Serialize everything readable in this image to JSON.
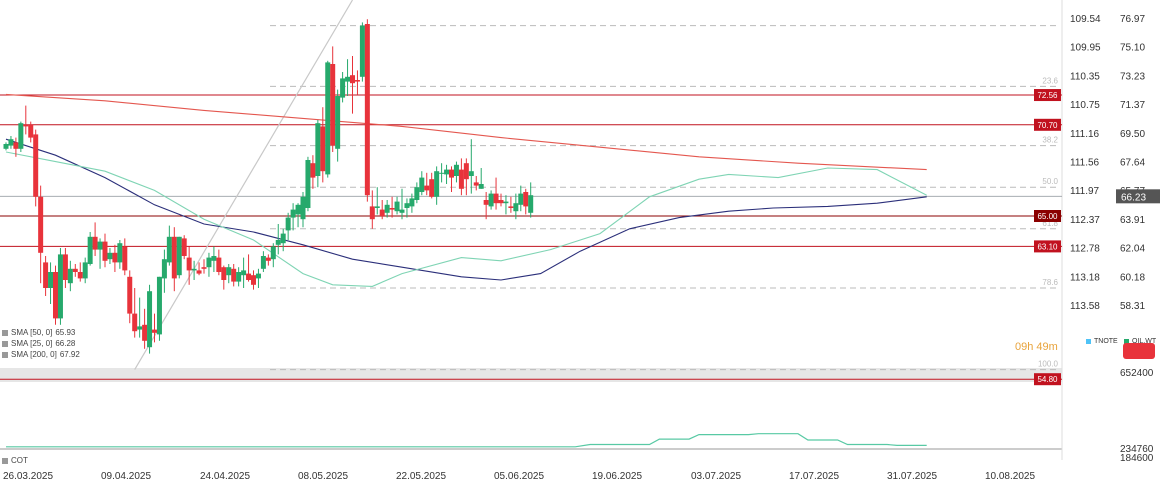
{
  "chart_data": {
    "type": "candlestick",
    "instrument_tags": [
      "TNOTE",
      "OIL.WT"
    ],
    "x_ticks": [
      "26.03.2025",
      "09.04.2025",
      "24.04.2025",
      "08.05.2025",
      "22.05.2025",
      "05.06.2025",
      "19.06.2025",
      "03.07.2025",
      "17.07.2025",
      "31.07.2025",
      "10.08.2025"
    ],
    "y_left_ticks": [
      "109.54",
      "109.95",
      "110.35",
      "110.75",
      "111.16",
      "111.56",
      "111.97",
      "112.37",
      "112.78",
      "113.18",
      "113.58"
    ],
    "y_right_ticks": [
      "76.97",
      "75.10",
      "73.23",
      "71.37",
      "69.50",
      "67.64",
      "65.77",
      "63.91",
      "62.04",
      "60.18",
      "58.31"
    ],
    "ylim": [
      55.5,
      78.5
    ],
    "current_price": "66.23",
    "countdown": "09h 49m",
    "levels": [
      {
        "value": 72.56,
        "label": "72.56",
        "color": "#c1121f"
      },
      {
        "value": 70.7,
        "label": "70.70",
        "color": "#c1121f"
      },
      {
        "value": 65.0,
        "label": "65.00",
        "color": "#8b0000"
      },
      {
        "value": 63.1,
        "label": "63.10",
        "color": "#c1121f"
      },
      {
        "value": 54.8,
        "label": "54.80",
        "color": "#c1121f"
      }
    ],
    "fib_levels": [
      {
        "value": 76.9,
        "label": ""
      },
      {
        "value": 73.1,
        "label": "23.6"
      },
      {
        "value": 69.4,
        "label": "38.2"
      },
      {
        "value": 66.8,
        "label": "50.0"
      },
      {
        "value": 64.2,
        "label": "61.8"
      },
      {
        "value": 60.5,
        "label": "78.6"
      },
      {
        "value": 55.4,
        "label": "100.0"
      }
    ],
    "trendline": {
      "from": [
        26,
        55.4
      ],
      "to": [
        70,
        78.5
      ]
    },
    "candles": [
      [
        69.2,
        69.6,
        69.1,
        69.5
      ],
      [
        69.4,
        70.0,
        69.2,
        69.8
      ],
      [
        69.6,
        69.9,
        68.7,
        69.2
      ],
      [
        69.2,
        70.9,
        69.0,
        70.8
      ],
      [
        70.7,
        71.9,
        70.1,
        70.6
      ],
      [
        70.7,
        70.9,
        69.6,
        69.9
      ],
      [
        70.1,
        70.4,
        65.6,
        66.2
      ],
      [
        66.2,
        66.9,
        60.8,
        62.7
      ],
      [
        62.1,
        62.5,
        60.0,
        60.5
      ],
      [
        60.5,
        62.1,
        59.5,
        61.5
      ],
      [
        61.5,
        61.9,
        58.2,
        58.6
      ],
      [
        58.6,
        63.0,
        58.2,
        62.6
      ],
      [
        62.6,
        63.0,
        60.5,
        61.0
      ],
      [
        60.8,
        62.2,
        60.3,
        61.7
      ],
      [
        61.7,
        62.0,
        61.2,
        61.5
      ],
      [
        61.5,
        62.1,
        60.9,
        61.1
      ],
      [
        61.1,
        62.4,
        60.8,
        62.1
      ],
      [
        62.0,
        64.0,
        61.9,
        63.7
      ],
      [
        63.7,
        64.6,
        62.5,
        62.9
      ],
      [
        62.9,
        63.6,
        61.7,
        63.4
      ],
      [
        63.4,
        63.9,
        61.8,
        62.2
      ],
      [
        62.3,
        63.0,
        62.0,
        62.7
      ],
      [
        62.7,
        63.2,
        61.5,
        62.1
      ],
      [
        62.1,
        63.5,
        61.7,
        63.3
      ],
      [
        63.1,
        63.6,
        61.3,
        61.6
      ],
      [
        61.2,
        61.6,
        58.3,
        58.9
      ],
      [
        58.9,
        60.5,
        57.4,
        57.8
      ],
      [
        57.9,
        59.9,
        57.4,
        58.1
      ],
      [
        58.2,
        59.2,
        56.7,
        57.2
      ],
      [
        56.8,
        60.7,
        56.4,
        60.3
      ],
      [
        57.9,
        58.9,
        57.1,
        57.7
      ],
      [
        57.6,
        61.2,
        57.2,
        61.2
      ],
      [
        61.1,
        62.9,
        60.2,
        62.3
      ],
      [
        62.1,
        64.4,
        61.9,
        63.7
      ],
      [
        63.7,
        64.3,
        60.3,
        61.1
      ],
      [
        61.3,
        63.7,
        61.1,
        63.7
      ],
      [
        63.6,
        63.8,
        62.3,
        62.5
      ],
      [
        62.4,
        63.1,
        60.7,
        61.6
      ],
      [
        61.6,
        62.2,
        61.0,
        61.7
      ],
      [
        61.6,
        62.1,
        61.3,
        61.4
      ],
      [
        61.8,
        62.3,
        61.4,
        61.7
      ],
      [
        61.8,
        62.7,
        61.2,
        62.4
      ],
      [
        62.2,
        63.1,
        61.5,
        62.5
      ],
      [
        62.4,
        62.9,
        61.3,
        61.5
      ],
      [
        61.8,
        61.9,
        60.4,
        61.0
      ],
      [
        61.3,
        62.0,
        60.8,
        61.8
      ],
      [
        61.7,
        62.0,
        60.6,
        60.9
      ],
      [
        60.9,
        61.8,
        60.6,
        61.5
      ],
      [
        61.3,
        62.4,
        60.5,
        61.6
      ],
      [
        61.4,
        62.6,
        60.9,
        61.0
      ],
      [
        61.3,
        61.6,
        60.4,
        60.7
      ],
      [
        61.1,
        61.7,
        60.5,
        61.4
      ],
      [
        61.7,
        62.8,
        61.5,
        62.5
      ],
      [
        62.4,
        62.6,
        61.9,
        62.2
      ],
      [
        62.3,
        63.3,
        61.8,
        63.1
      ],
      [
        63.2,
        64.5,
        62.6,
        63.5
      ],
      [
        63.3,
        64.2,
        62.8,
        63.9
      ],
      [
        64.1,
        65.2,
        63.5,
        64.9
      ],
      [
        64.9,
        65.8,
        64.1,
        65.4
      ],
      [
        65.1,
        65.8,
        64.3,
        65.7
      ],
      [
        64.8,
        66.5,
        64.3,
        66.2
      ],
      [
        65.5,
        68.7,
        65.3,
        68.5
      ],
      [
        68.3,
        68.8,
        66.7,
        67.4
      ],
      [
        67.5,
        71.0,
        66.8,
        70.8
      ],
      [
        70.6,
        71.8,
        67.1,
        67.8
      ],
      [
        67.6,
        74.7,
        67.4,
        74.6
      ],
      [
        74.5,
        75.6,
        69.0,
        69.4
      ],
      [
        69.2,
        72.9,
        68.4,
        72.5
      ],
      [
        72.4,
        74.0,
        72.1,
        73.6
      ],
      [
        73.4,
        74.8,
        72.5,
        73.7
      ],
      [
        73.8,
        75.0,
        71.4,
        73.3
      ],
      [
        73.5,
        74.1,
        72.6,
        73.4
      ],
      [
        73.7,
        77.1,
        73.4,
        76.9
      ],
      [
        77.0,
        77.3,
        65.9,
        66.3
      ],
      [
        65.6,
        66.6,
        64.2,
        64.8
      ],
      [
        65.5,
        66.8,
        65.1,
        65.6
      ],
      [
        65.4,
        66.0,
        64.8,
        65.0
      ],
      [
        65.2,
        66.0,
        64.9,
        65.7
      ],
      [
        65.5,
        66.2,
        64.9,
        65.4
      ],
      [
        65.3,
        66.2,
        65.1,
        65.9
      ],
      [
        65.2,
        66.7,
        64.8,
        65.4
      ],
      [
        65.5,
        66.1,
        64.9,
        65.8
      ],
      [
        65.6,
        66.4,
        65.2,
        66.1
      ],
      [
        66.0,
        67.1,
        65.8,
        66.8
      ],
      [
        66.5,
        67.8,
        66.3,
        67.4
      ],
      [
        66.9,
        67.7,
        66.3,
        66.6
      ],
      [
        67.3,
        67.7,
        66.1,
        66.2
      ],
      [
        66.2,
        68.1,
        65.7,
        67.8
      ],
      [
        67.7,
        68.3,
        67.1,
        67.7
      ],
      [
        67.6,
        68.2,
        67.0,
        67.9
      ],
      [
        67.9,
        68.1,
        66.5,
        67.4
      ],
      [
        67.5,
        68.4,
        67.1,
        68.2
      ],
      [
        67.9,
        68.6,
        66.3,
        66.7
      ],
      [
        68.3,
        68.6,
        66.3,
        67.3
      ],
      [
        67.5,
        69.8,
        66.4,
        67.8
      ],
      [
        67.1,
        67.5,
        66.6,
        66.9
      ],
      [
        66.7,
        68.0,
        66.7,
        67.0
      ],
      [
        66.0,
        66.5,
        64.8,
        65.7
      ],
      [
        65.6,
        66.6,
        65.4,
        66.4
      ],
      [
        66.4,
        67.4,
        65.4,
        65.8
      ],
      [
        66.0,
        66.4,
        65.6,
        65.8
      ],
      [
        65.8,
        66.3,
        65.1,
        65.9
      ],
      [
        65.6,
        66.2,
        65.2,
        65.5
      ],
      [
        65.3,
        66.4,
        64.8,
        65.8
      ],
      [
        65.7,
        66.9,
        65.3,
        66.4
      ],
      [
        66.5,
        66.7,
        65.1,
        65.6
      ],
      [
        65.2,
        67.1,
        64.9,
        66.3
      ]
    ],
    "sma": [
      {
        "name": "SMA [50, 0]",
        "value": "65.93",
        "color": "#2b2f7a",
        "points": [
          [
            0,
            69.8
          ],
          [
            10,
            68.8
          ],
          [
            20,
            67.4
          ],
          [
            30,
            65.7
          ],
          [
            40,
            64.5
          ],
          [
            50,
            64.0
          ],
          [
            60,
            63.2
          ],
          [
            70,
            62.3
          ],
          [
            80,
            61.8
          ],
          [
            92,
            61.2
          ],
          [
            100,
            61.0
          ],
          [
            108,
            61.4
          ],
          [
            116,
            62.8
          ],
          [
            126,
            64.2
          ],
          [
            136,
            64.9
          ],
          [
            146,
            65.3
          ],
          [
            155,
            65.5
          ],
          [
            166,
            65.6
          ],
          [
            176,
            65.8
          ],
          [
            186,
            66.2
          ]
        ]
      },
      {
        "name": "SMA [25, 0]",
        "value": "66.28",
        "color": "#7fd4b4",
        "points": [
          [
            0,
            69.0
          ],
          [
            10,
            68.4
          ],
          [
            20,
            67.8
          ],
          [
            30,
            66.6
          ],
          [
            40,
            64.8
          ],
          [
            50,
            63.5
          ],
          [
            60,
            61.4
          ],
          [
            66,
            60.7
          ],
          [
            74,
            60.6
          ],
          [
            80,
            61.4
          ],
          [
            92,
            62.4
          ],
          [
            100,
            62.2
          ],
          [
            110,
            62.9
          ],
          [
            120,
            63.9
          ],
          [
            130,
            66.2
          ],
          [
            140,
            67.3
          ],
          [
            146,
            67.6
          ],
          [
            156,
            67.4
          ],
          [
            166,
            68.0
          ],
          [
            176,
            67.9
          ],
          [
            186,
            66.3
          ]
        ]
      },
      {
        "name": "SMA [200, 0]",
        "value": "67.92",
        "color": "#e4574f",
        "points": [
          [
            0,
            72.6
          ],
          [
            20,
            72.2
          ],
          [
            40,
            71.6
          ],
          [
            60,
            71.1
          ],
          [
            80,
            70.6
          ],
          [
            100,
            69.9
          ],
          [
            120,
            69.3
          ],
          [
            140,
            68.7
          ],
          [
            160,
            68.3
          ],
          [
            186,
            67.9
          ]
        ]
      }
    ],
    "cot": {
      "label": "COT",
      "right_ticks": [
        "652400",
        "234760",
        "184600"
      ],
      "points": [
        [
          0,
          0.05
        ],
        [
          115,
          0.05
        ],
        [
          118,
          0.1
        ],
        [
          130,
          0.1
        ],
        [
          132,
          0.22
        ],
        [
          138,
          0.22
        ],
        [
          140,
          0.32
        ],
        [
          150,
          0.32
        ],
        [
          152,
          0.34
        ],
        [
          160,
          0.34
        ],
        [
          162,
          0.2
        ],
        [
          168,
          0.2
        ],
        [
          170,
          0.1
        ],
        [
          178,
          0.1
        ],
        [
          180,
          0.08
        ],
        [
          186,
          0.08
        ]
      ]
    }
  }
}
